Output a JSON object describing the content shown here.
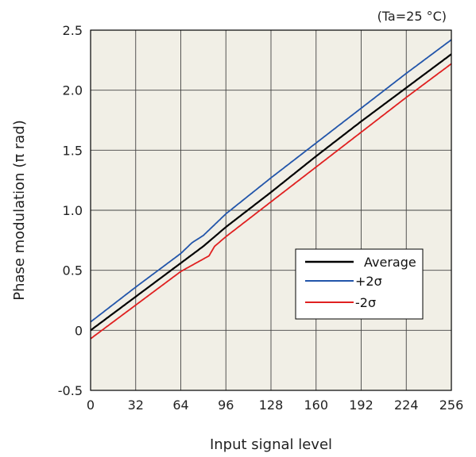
{
  "chart_data": {
    "type": "line",
    "title": "",
    "annotation": "(Ta=25 °C)",
    "xlabel": "Input signal level",
    "ylabel": "Phase modulation (π rad)",
    "xlim": [
      0,
      256
    ],
    "ylim": [
      -0.5,
      2.5
    ],
    "x_ticks": [
      "0",
      "32",
      "64",
      "96",
      "128",
      "160",
      "192",
      "224",
      "256"
    ],
    "y_ticks": [
      "-0.5",
      "0",
      "0.5",
      "1.0",
      "1.5",
      "2.0",
      "2.5"
    ],
    "grid": true,
    "legend_position": "center-right",
    "series": [
      {
        "name": "Average",
        "color": "#000000",
        "x": [
          0,
          32,
          64,
          80,
          96,
          128,
          160,
          192,
          224,
          256
        ],
        "y": [
          0.0,
          0.28,
          0.56,
          0.7,
          0.86,
          1.15,
          1.45,
          1.74,
          2.02,
          2.3
        ]
      },
      {
        "name": "+2σ",
        "color": "#2255aa",
        "x": [
          0,
          32,
          64,
          72,
          80,
          96,
          128,
          160,
          192,
          224,
          256
        ],
        "y": [
          0.07,
          0.36,
          0.64,
          0.73,
          0.79,
          0.97,
          1.27,
          1.56,
          1.85,
          2.14,
          2.42
        ]
      },
      {
        "name": "-2σ",
        "color": "#e02020",
        "x": [
          0,
          32,
          64,
          84,
          88,
          96,
          128,
          160,
          192,
          224,
          256
        ],
        "y": [
          -0.07,
          0.21,
          0.49,
          0.62,
          0.7,
          0.78,
          1.07,
          1.36,
          1.65,
          1.94,
          2.22
        ]
      }
    ]
  }
}
